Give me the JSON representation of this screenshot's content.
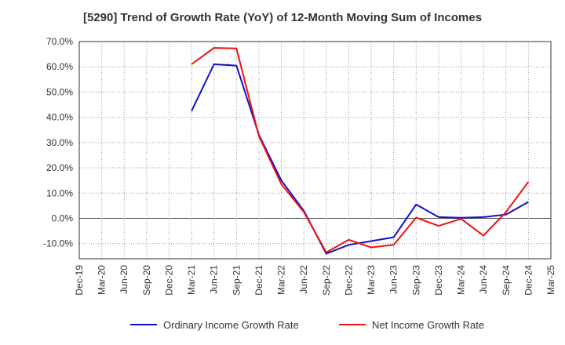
{
  "chart_data": {
    "type": "line",
    "title": "[5290]  Trend of Growth Rate (YoY) of 12-Month Moving Sum of Incomes",
    "xlabel": "",
    "ylabel": "",
    "ylim": [
      -16,
      70
    ],
    "yticks": [
      "70.0%",
      "60.0%",
      "50.0%",
      "40.0%",
      "30.0%",
      "20.0%",
      "10.0%",
      "0.0%",
      "-10.0%"
    ],
    "ytick_values": [
      70,
      60,
      50,
      40,
      30,
      20,
      10,
      0,
      -10
    ],
    "categories": [
      "Dec-19",
      "Mar-20",
      "Jun-20",
      "Sep-20",
      "Dec-20",
      "Mar-21",
      "Jun-21",
      "Sep-21",
      "Dec-21",
      "Mar-22",
      "Jun-22",
      "Sep-22",
      "Dec-22",
      "Mar-23",
      "Jun-23",
      "Sep-23",
      "Dec-23",
      "Mar-24",
      "Jun-24",
      "Sep-24",
      "Dec-24",
      "Mar-25"
    ],
    "grid": true,
    "legend_position": "bottom",
    "series": [
      {
        "name": "Ordinary Income Growth Rate",
        "color": "#1010cc",
        "values": [
          null,
          null,
          null,
          null,
          null,
          42.5,
          61.0,
          60.5,
          33.0,
          15.0,
          3.0,
          -14.0,
          -10.5,
          -9.0,
          -7.5,
          5.5,
          0.5,
          0.2,
          0.5,
          1.5,
          6.5,
          null
        ]
      },
      {
        "name": "Net Income Growth Rate",
        "color": "#ee1111",
        "values": [
          null,
          null,
          null,
          null,
          null,
          61.0,
          67.5,
          67.3,
          32.5,
          13.5,
          2.5,
          -13.5,
          -8.5,
          -11.5,
          -10.5,
          0.3,
          -3.0,
          -0.2,
          -6.8,
          2.5,
          14.5,
          null
        ]
      }
    ]
  }
}
